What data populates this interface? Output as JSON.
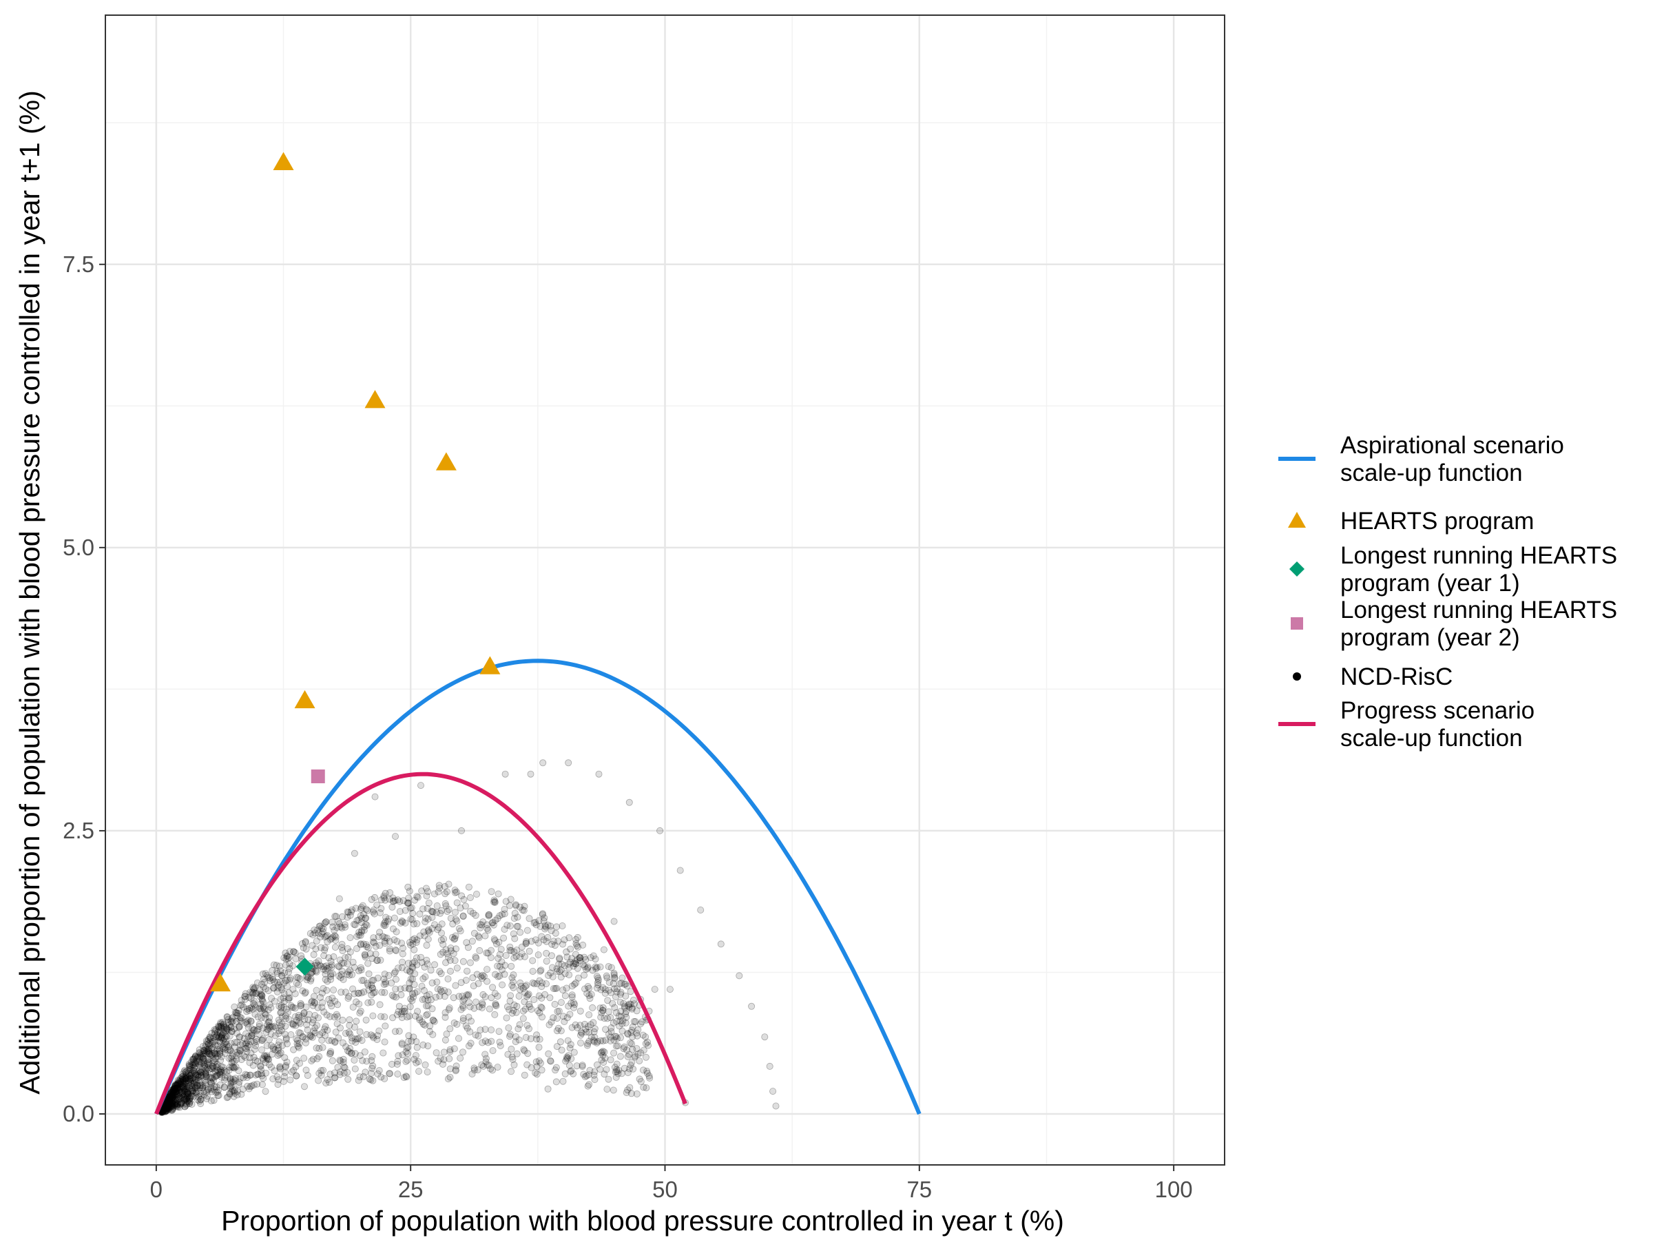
{
  "chart_data": {
    "type": "scatter",
    "title": "",
    "xlabel": "Proportion of population with blood pressure controlled in year t (%)",
    "ylabel": "Additional proportion of population with blood pressure controlled in year t+1 (%)",
    "xlim": [
      -5,
      105
    ],
    "ylim": [
      -0.45,
      9.7
    ],
    "x_ticks": [
      0,
      25,
      50,
      75,
      100
    ],
    "x_tick_labels": [
      "0",
      "25",
      "50",
      "75",
      "100"
    ],
    "y_ticks": [
      0,
      2.5,
      5,
      7.5
    ],
    "y_tick_labels": [
      "0.0",
      "2.5",
      "5.0",
      "7.5"
    ],
    "grid": true,
    "legend_position": "right",
    "legend": [
      {
        "key": "aspirational",
        "kind": "line",
        "color": "#1E88E5",
        "label_lines": [
          "Aspirational scenario",
          "scale-up function"
        ]
      },
      {
        "key": "hearts",
        "kind": "triangle",
        "color": "#E69F00",
        "label_lines": [
          "HEARTS program"
        ]
      },
      {
        "key": "year1",
        "kind": "diamond",
        "color": "#009E73",
        "label_lines": [
          "Longest running HEARTS",
          "program (year 1)"
        ]
      },
      {
        "key": "year2",
        "kind": "square",
        "color": "#CC79A7",
        "label_lines": [
          "Longest running HEARTS",
          "program (year 2)"
        ]
      },
      {
        "key": "ncd",
        "kind": "dot",
        "color": "#000000",
        "label_lines": [
          "NCD-RisC"
        ]
      },
      {
        "key": "progress",
        "kind": "line",
        "color": "#D81B60",
        "label_lines": [
          "Progress scenario",
          "scale-up function"
        ]
      }
    ],
    "curves": [
      {
        "key": "aspirational",
        "color": "#1E88E5",
        "x_min": 0,
        "x_max": 75,
        "peak_x": 37.5,
        "peak_y": 4.0
      },
      {
        "key": "progress",
        "color": "#D81B60",
        "x_min": 0,
        "x_max": 52,
        "peak_x": 26.2,
        "peak_y": 3.0
      }
    ],
    "hearts_points": [
      {
        "x": 12.5,
        "y": 8.4
      },
      {
        "x": 21.5,
        "y": 6.3
      },
      {
        "x": 28.5,
        "y": 5.75
      },
      {
        "x": 32.8,
        "y": 3.95
      },
      {
        "x": 14.6,
        "y": 3.65
      },
      {
        "x": 6.3,
        "y": 1.15
      }
    ],
    "year1_point": {
      "x": 14.6,
      "y": 1.3
    },
    "year2_point": {
      "x": 15.9,
      "y": 2.98
    },
    "ncd_sample": [
      {
        "x": 36.8,
        "y": 3.0
      },
      {
        "x": 38.0,
        "y": 3.1
      },
      {
        "x": 40.5,
        "y": 3.1
      },
      {
        "x": 43.5,
        "y": 3.0
      },
      {
        "x": 34.3,
        "y": 3.0
      },
      {
        "x": 46.5,
        "y": 2.75
      },
      {
        "x": 49.5,
        "y": 2.5
      },
      {
        "x": 51.5,
        "y": 2.15
      },
      {
        "x": 53.5,
        "y": 1.8
      },
      {
        "x": 55.5,
        "y": 1.5
      },
      {
        "x": 57.3,
        "y": 1.22
      },
      {
        "x": 58.5,
        "y": 0.95
      },
      {
        "x": 59.8,
        "y": 0.68
      },
      {
        "x": 60.3,
        "y": 0.42
      },
      {
        "x": 60.6,
        "y": 0.2
      },
      {
        "x": 60.9,
        "y": 0.07
      },
      {
        "x": 52.0,
        "y": 0.1
      },
      {
        "x": 50.5,
        "y": 1.1
      },
      {
        "x": 49.0,
        "y": 1.1
      },
      {
        "x": 45.0,
        "y": 1.7
      },
      {
        "x": 44.0,
        "y": 1.45
      },
      {
        "x": 41.5,
        "y": 1.2
      },
      {
        "x": 36.0,
        "y": 1.8
      },
      {
        "x": 30.0,
        "y": 2.5
      },
      {
        "x": 26.0,
        "y": 2.9
      },
      {
        "x": 21.5,
        "y": 2.8
      },
      {
        "x": 23.5,
        "y": 2.45
      },
      {
        "x": 19.5,
        "y": 2.3
      },
      {
        "x": 18.0,
        "y": 1.9
      },
      {
        "x": 42.0,
        "y": 0.35
      },
      {
        "x": 38.5,
        "y": 0.22
      }
    ]
  }
}
